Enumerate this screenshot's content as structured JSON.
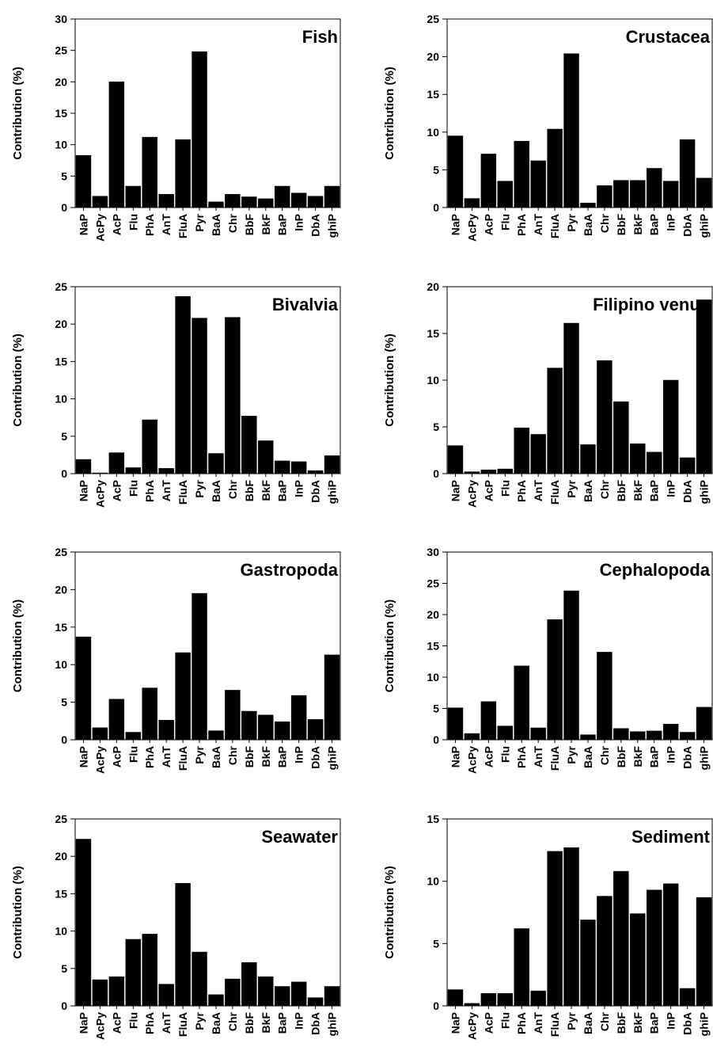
{
  "chart_data": [
    {
      "type": "bar",
      "title": "Fish",
      "ylabel": "Contribution (%)",
      "ylim": [
        0,
        30
      ],
      "yticks": [
        0,
        5,
        10,
        15,
        20,
        25,
        30
      ],
      "categories": [
        "NaP",
        "AcPy",
        "AcP",
        "Flu",
        "PhA",
        "AnT",
        "FluA",
        "Pyr",
        "BaA",
        "Chr",
        "BbF",
        "BkF",
        "BaP",
        "InP",
        "DbA",
        "ghiP"
      ],
      "values": [
        8.3,
        1.8,
        20.0,
        3.4,
        11.2,
        2.1,
        10.8,
        24.8,
        0.9,
        2.1,
        1.7,
        1.4,
        3.4,
        2.3,
        1.8,
        3.4
      ]
    },
    {
      "type": "bar",
      "title": "Crustacea",
      "ylabel": "Contribution (%)",
      "ylim": [
        0,
        25
      ],
      "yticks": [
        0,
        5,
        10,
        15,
        20,
        25
      ],
      "categories": [
        "NaP",
        "AcPy",
        "AcP",
        "Flu",
        "PhA",
        "AnT",
        "FluA",
        "Pyr",
        "BaA",
        "Chr",
        "BbF",
        "BkF",
        "BaP",
        "InP",
        "DbA",
        "ghiP"
      ],
      "values": [
        9.5,
        1.2,
        7.1,
        3.5,
        8.8,
        6.2,
        10.4,
        20.4,
        0.6,
        2.9,
        3.6,
        3.6,
        5.2,
        3.5,
        9.0,
        3.9
      ]
    },
    {
      "type": "bar",
      "title": "Bivalvia",
      "ylabel": "Contribution (%)",
      "ylim": [
        0,
        25
      ],
      "yticks": [
        0,
        5,
        10,
        15,
        20,
        25
      ],
      "categories": [
        "NaP",
        "AcPy",
        "AcP",
        "Flu",
        "PhA",
        "AnT",
        "FluA",
        "Pyr",
        "BaA",
        "Chr",
        "BbF",
        "BkF",
        "BaP",
        "InP",
        "DbA",
        "ghiP"
      ],
      "values": [
        1.9,
        0.1,
        2.8,
        0.8,
        7.2,
        0.7,
        23.7,
        20.8,
        2.7,
        20.9,
        7.7,
        4.4,
        1.7,
        1.6,
        0.4,
        2.4
      ]
    },
    {
      "type": "bar",
      "title": "Filipino venus",
      "ylabel": "Contribution (%)",
      "ylim": [
        0,
        20
      ],
      "yticks": [
        0,
        5,
        10,
        15,
        20
      ],
      "categories": [
        "NaP",
        "AcPy",
        "AcP",
        "Flu",
        "PhA",
        "AnT",
        "FluA",
        "Pyr",
        "BaA",
        "Chr",
        "BbF",
        "BkF",
        "BaP",
        "InP",
        "DbA",
        "ghiP"
      ],
      "values": [
        3.0,
        0.2,
        0.4,
        0.5,
        4.9,
        4.2,
        11.3,
        16.1,
        3.1,
        12.1,
        7.7,
        3.2,
        2.3,
        10.0,
        1.7,
        18.6
      ]
    },
    {
      "type": "bar",
      "title": "Gastropoda",
      "ylabel": "Contribution (%)",
      "ylim": [
        0,
        25
      ],
      "yticks": [
        0,
        5,
        10,
        15,
        20,
        25
      ],
      "categories": [
        "NaP",
        "AcPy",
        "AcP",
        "Flu",
        "PhA",
        "AnT",
        "FluA",
        "Pyr",
        "BaA",
        "Chr",
        "BbF",
        "BkF",
        "BaP",
        "InP",
        "DbA",
        "ghiP"
      ],
      "values": [
        13.7,
        1.6,
        5.4,
        1.0,
        6.9,
        2.6,
        11.6,
        19.5,
        1.2,
        6.6,
        3.8,
        3.3,
        2.4,
        5.9,
        2.7,
        11.3
      ]
    },
    {
      "type": "bar",
      "title": "Cephalopoda",
      "ylabel": "Contribution (%)",
      "ylim": [
        0,
        30
      ],
      "yticks": [
        0,
        5,
        10,
        15,
        20,
        25,
        30
      ],
      "categories": [
        "NaP",
        "AcPy",
        "AcP",
        "Flu",
        "PhA",
        "AnT",
        "FluA",
        "Pyr",
        "BaA",
        "Chr",
        "BbF",
        "BkF",
        "BaP",
        "InP",
        "DbA",
        "ghiP"
      ],
      "values": [
        5.1,
        1.0,
        6.1,
        2.2,
        11.8,
        1.9,
        19.2,
        23.8,
        0.8,
        14.0,
        1.8,
        1.3,
        1.4,
        2.5,
        1.2,
        5.2
      ]
    },
    {
      "type": "bar",
      "title": "Seawater",
      "ylabel": "Contribution (%)",
      "ylim": [
        0,
        25
      ],
      "yticks": [
        0,
        5,
        10,
        15,
        20,
        25
      ],
      "categories": [
        "NaP",
        "AcPy",
        "AcP",
        "Flu",
        "PhA",
        "AnT",
        "FluA",
        "Pyr",
        "BaA",
        "Chr",
        "BbF",
        "BkF",
        "BaP",
        "InP",
        "DbA",
        "ghiP"
      ],
      "values": [
        22.3,
        3.5,
        3.9,
        8.9,
        9.6,
        2.9,
        16.4,
        7.2,
        1.5,
        3.6,
        5.8,
        3.9,
        2.6,
        3.2,
        1.1,
        2.6
      ]
    },
    {
      "type": "bar",
      "title": "Sediment",
      "ylabel": "Contribution (%)",
      "ylim": [
        0,
        15
      ],
      "yticks": [
        0,
        5,
        10,
        15
      ],
      "categories": [
        "NaP",
        "AcPy",
        "AcP",
        "Flu",
        "PhA",
        "AnT",
        "FluA",
        "Pyr",
        "BaA",
        "Chr",
        "BbF",
        "BkF",
        "BaP",
        "InP",
        "DbA",
        "ghiP"
      ],
      "values": [
        1.3,
        0.2,
        1.0,
        1.0,
        6.2,
        1.2,
        12.4,
        12.7,
        6.9,
        8.8,
        10.8,
        7.4,
        9.3,
        9.8,
        1.4,
        8.7
      ]
    }
  ]
}
